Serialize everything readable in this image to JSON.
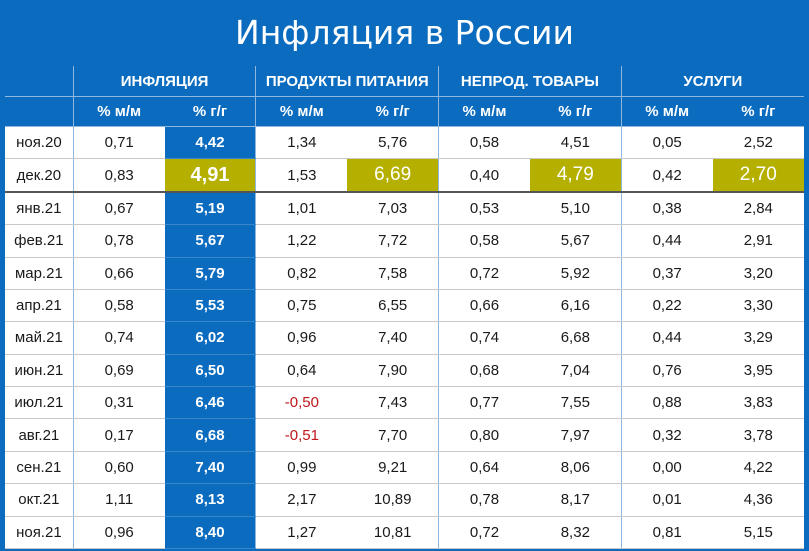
{
  "title": "Инфляция в России",
  "groups": [
    "ИНФЛЯЦИЯ",
    "ПРОДУКТЫ ПИТАНИЯ",
    "НЕПРОД. ТОВАРЫ",
    "УСЛУГИ"
  ],
  "subheaders": [
    "% м/м",
    "% г/г",
    "% м/м",
    "% г/г",
    "% м/м",
    "% г/г",
    "% м/м",
    "% г/г"
  ],
  "rows": [
    {
      "month": "ноя.20",
      "values": [
        "0,71",
        "4,42",
        "1,34",
        "5,76",
        "0,58",
        "4,51",
        "0,05",
        "2,52"
      ]
    },
    {
      "month": "дек.20",
      "values": [
        "0,83",
        "4,91",
        "1,53",
        "6,69",
        "0,40",
        "4,79",
        "0,42",
        "2,70"
      ]
    },
    {
      "month": "янв.21",
      "values": [
        "0,67",
        "5,19",
        "1,01",
        "7,03",
        "0,53",
        "5,10",
        "0,38",
        "2,84"
      ]
    },
    {
      "month": "фев.21",
      "values": [
        "0,78",
        "5,67",
        "1,22",
        "7,72",
        "0,58",
        "5,67",
        "0,44",
        "2,91"
      ]
    },
    {
      "month": "мар.21",
      "values": [
        "0,66",
        "5,79",
        "0,82",
        "7,58",
        "0,72",
        "5,92",
        "0,37",
        "3,20"
      ]
    },
    {
      "month": "апр.21",
      "values": [
        "0,58",
        "5,53",
        "0,75",
        "6,55",
        "0,66",
        "6,16",
        "0,22",
        "3,30"
      ]
    },
    {
      "month": "май.21",
      "values": [
        "0,74",
        "6,02",
        "0,96",
        "7,40",
        "0,74",
        "6,68",
        "0,44",
        "3,29"
      ]
    },
    {
      "month": "июн.21",
      "values": [
        "0,69",
        "6,50",
        "0,64",
        "7,90",
        "0,68",
        "7,04",
        "0,76",
        "3,95"
      ]
    },
    {
      "month": "июл.21",
      "values": [
        "0,31",
        "6,46",
        "-0,50",
        "7,43",
        "0,77",
        "7,55",
        "0,88",
        "3,83"
      ]
    },
    {
      "month": "авг.21",
      "values": [
        "0,17",
        "6,68",
        "-0,51",
        "7,70",
        "0,80",
        "7,97",
        "0,32",
        "3,78"
      ]
    },
    {
      "month": "сен.21",
      "values": [
        "0,60",
        "7,40",
        "0,99",
        "9,21",
        "0,64",
        "8,06",
        "0,00",
        "4,22"
      ]
    },
    {
      "month": "окт.21",
      "values": [
        "1,11",
        "8,13",
        "2,17",
        "10,89",
        "0,78",
        "8,17",
        "0,01",
        "4,36"
      ]
    },
    {
      "month": "ноя.21",
      "values": [
        "0,96",
        "8,40",
        "1,27",
        "10,81",
        "0,72",
        "8,32",
        "0,81",
        "5,15"
      ]
    }
  ],
  "highlight_row": 1,
  "highlight_color": "#b5b000",
  "negative_color": "#c0171b",
  "accent_color": "#0a6bbf"
}
